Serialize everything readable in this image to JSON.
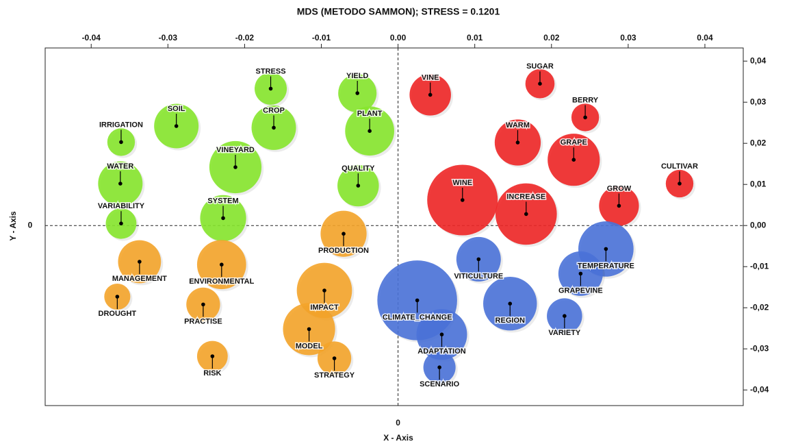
{
  "chart_data": {
    "type": "bubble",
    "title": "MDS (METODO SAMMON); STRESS = 0.1201",
    "x_label": "X - Axis",
    "y_label": "Y - Axis",
    "xlim": [
      -0.046,
      0.045
    ],
    "ylim": [
      -0.0438,
      0.0432
    ],
    "xticks": [
      -0.04,
      -0.03,
      -0.02,
      -0.01,
      {
        "value": 0,
        "label": "0.00"
      },
      0.01,
      0.02,
      0.03,
      0.04
    ],
    "yticks": [
      {
        "value": 0.04,
        "label": "0,04"
      },
      {
        "value": 0.03,
        "label": "0,03"
      },
      {
        "value": 0.02,
        "label": "0,02"
      },
      {
        "value": 0.01,
        "label": "0,01"
      },
      {
        "value": 0,
        "label": "0,00"
      },
      {
        "value": -0.01,
        "label": "-0,01"
      },
      {
        "value": -0.02,
        "label": "-0,02"
      },
      {
        "value": -0.03,
        "label": "-0,03"
      },
      {
        "value": -0.04,
        "label": "-0,04"
      }
    ],
    "xticks_bottom": [
      0
    ],
    "yticks_left": [
      0
    ],
    "series": [
      {
        "color": "#86e52c",
        "labels": [
          "STRESS",
          "YIELD",
          "SOIL",
          "CROP",
          "PLANT",
          "IRRIGATION",
          "VINEYARD",
          "WATER",
          "QUALITY",
          "SYSTEM",
          "VARIABILITY"
        ],
        "x": [
          -0.0166,
          -0.0053,
          -0.0289,
          -0.0162,
          -0.0037,
          -0.0361,
          -0.0212,
          -0.0362,
          -0.0052,
          -0.0228,
          -0.0361
        ],
        "values": [
          0.0333,
          0.0322,
          0.0242,
          0.0238,
          0.023,
          0.0203,
          0.0142,
          0.0102,
          0.0097,
          0.0018,
          0.0005
        ],
        "sizes": [
          0.0021,
          0.0025,
          0.0029,
          0.0029,
          0.0032,
          0.0018,
          0.0034,
          0.0029,
          0.0027,
          0.003,
          0.002
        ]
      },
      {
        "color": "#f4a42a",
        "labels": [
          "PRODUCTION",
          "MANAGEMENT",
          "ENVIRONMENTAL",
          "IMPACT",
          "DROUGHT",
          "PRACTISE",
          "MODEL",
          "RISK",
          "STRATEGY"
        ],
        "x": [
          -0.0071,
          -0.0337,
          -0.023,
          -0.0096,
          -0.0366,
          -0.0254,
          -0.0116,
          -0.0242,
          -0.0083
        ],
        "values": [
          -0.002,
          -0.0088,
          -0.0095,
          -0.0158,
          -0.0173,
          -0.0192,
          -0.0252,
          -0.0318,
          -0.0323
        ],
        "sizes": [
          0.003,
          0.0028,
          0.0032,
          0.0036,
          0.0017,
          0.0022,
          0.0034,
          0.002,
          0.0022
        ]
      },
      {
        "color": "#ee2626",
        "labels": [
          "VINE",
          "SUGAR",
          "BERRY",
          "WARM",
          "GRAPE",
          "CULTIVAR",
          "WINE",
          "INCREASE",
          "GROW"
        ],
        "x": [
          0.0042,
          0.0185,
          0.0244,
          0.0156,
          0.0229,
          0.0367,
          0.0084,
          0.0167,
          0.0288
        ],
        "values": [
          0.0318,
          0.0345,
          0.0263,
          0.0202,
          0.016,
          0.0102,
          0.0062,
          0.0028,
          0.0048
        ],
        "sizes": [
          0.0027,
          0.0019,
          0.0018,
          0.003,
          0.0034,
          0.0018,
          0.0046,
          0.004,
          0.0026
        ]
      },
      {
        "color": "#4a72d8",
        "labels": [
          "TEMPERATURE",
          "VITICULTURE",
          "GRAPEVINE",
          "CLIMATE_CHANGE",
          "REGION",
          "VARIETY",
          "ADAPTATION",
          "SCENARIO"
        ],
        "x": [
          0.0271,
          0.0105,
          0.0238,
          0.0025,
          0.0146,
          0.0217,
          0.0057,
          0.0054
        ],
        "values": [
          -0.0057,
          -0.0082,
          -0.0117,
          -0.0182,
          -0.019,
          -0.022,
          -0.0265,
          -0.0345
        ],
        "sizes": [
          0.0036,
          0.0029,
          0.0029,
          0.0052,
          0.0035,
          0.0023,
          0.0033,
          0.0021
        ]
      }
    ]
  }
}
